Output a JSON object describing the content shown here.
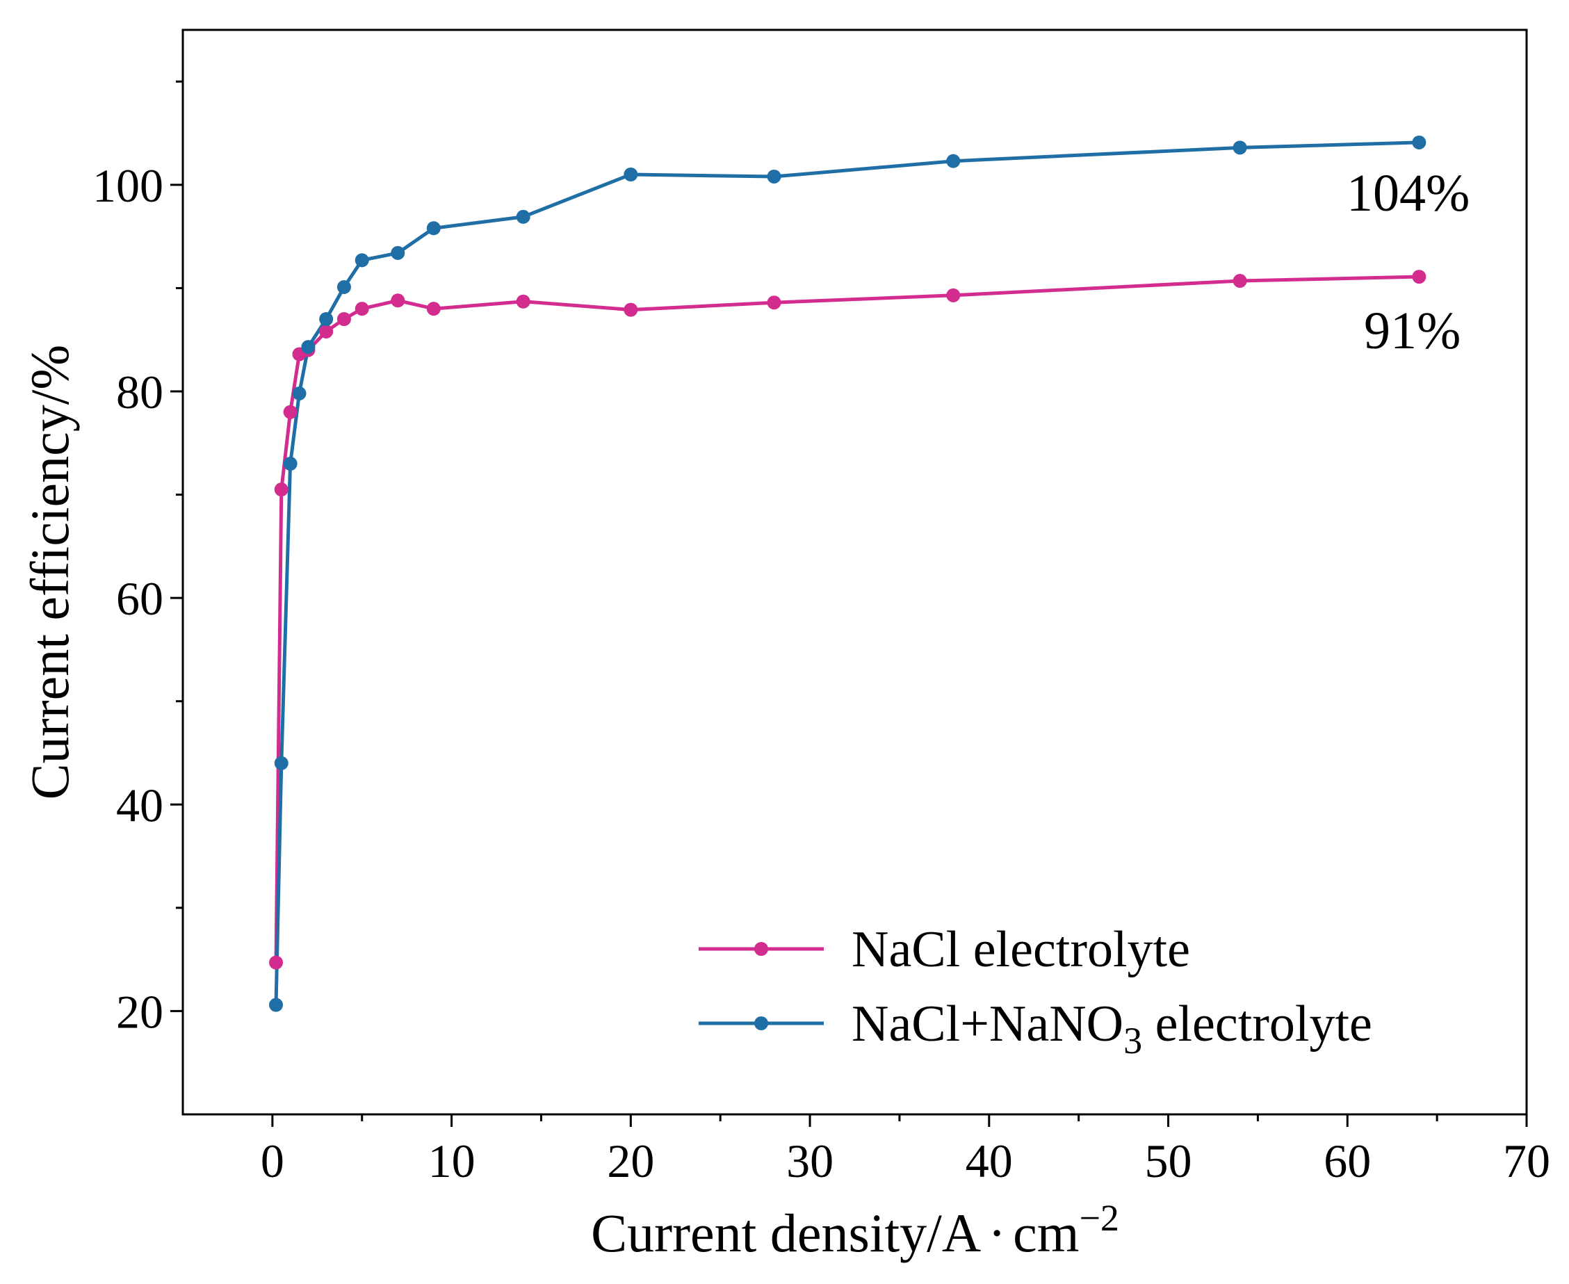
{
  "chart_data": {
    "type": "line",
    "title": "",
    "xlabel": "Current density/A·cm⁻²",
    "xlabel_main": "Current density/A",
    "xlabel_dot": "·",
    "xlabel_unit": "cm",
    "xlabel_exp": "−2",
    "ylabel": "Current efficiency/%",
    "xlim": [
      -5,
      70
    ],
    "ylim": [
      10,
      115
    ],
    "xticks": [
      0,
      10,
      20,
      30,
      40,
      50,
      60,
      70
    ],
    "xminor": [
      5,
      15,
      25,
      35,
      45,
      55,
      65
    ],
    "yticks": [
      20,
      40,
      60,
      80,
      100
    ],
    "yminor": [
      30,
      50,
      70,
      90,
      110
    ],
    "grid": false,
    "legend_position": "bottom-right",
    "series": [
      {
        "name": "NaCl electrolyte",
        "legend_label": "NaCl electrolyte",
        "color": "#d22c8f",
        "x": [
          0.2,
          0.5,
          1,
          1.5,
          2,
          3,
          4,
          5,
          7,
          9,
          14,
          20,
          28,
          38,
          54,
          64
        ],
        "y": [
          24.7,
          70.5,
          78,
          83.6,
          84,
          85.8,
          87,
          88,
          88.8,
          88,
          88.7,
          87.9,
          88.6,
          89.3,
          90.7,
          91.1
        ]
      },
      {
        "name": "NaCl+NaNO3 electrolyte",
        "legend_label": "NaCl+NaNO",
        "legend_sub": "3",
        "legend_suffix": " electrolyte",
        "color": "#1f6fa6",
        "x": [
          0.2,
          0.5,
          1,
          1.5,
          2,
          3,
          4,
          5,
          7,
          9,
          14,
          20,
          28,
          38,
          54,
          64
        ],
        "y": [
          20.6,
          44,
          73,
          79.8,
          84.3,
          87,
          90.1,
          92.7,
          93.4,
          95.8,
          96.9,
          101,
          100.8,
          102.3,
          103.6,
          104.1
        ]
      }
    ],
    "annotations": [
      {
        "text": "104%",
        "series": 1
      },
      {
        "text": "91%",
        "series": 0
      }
    ]
  }
}
